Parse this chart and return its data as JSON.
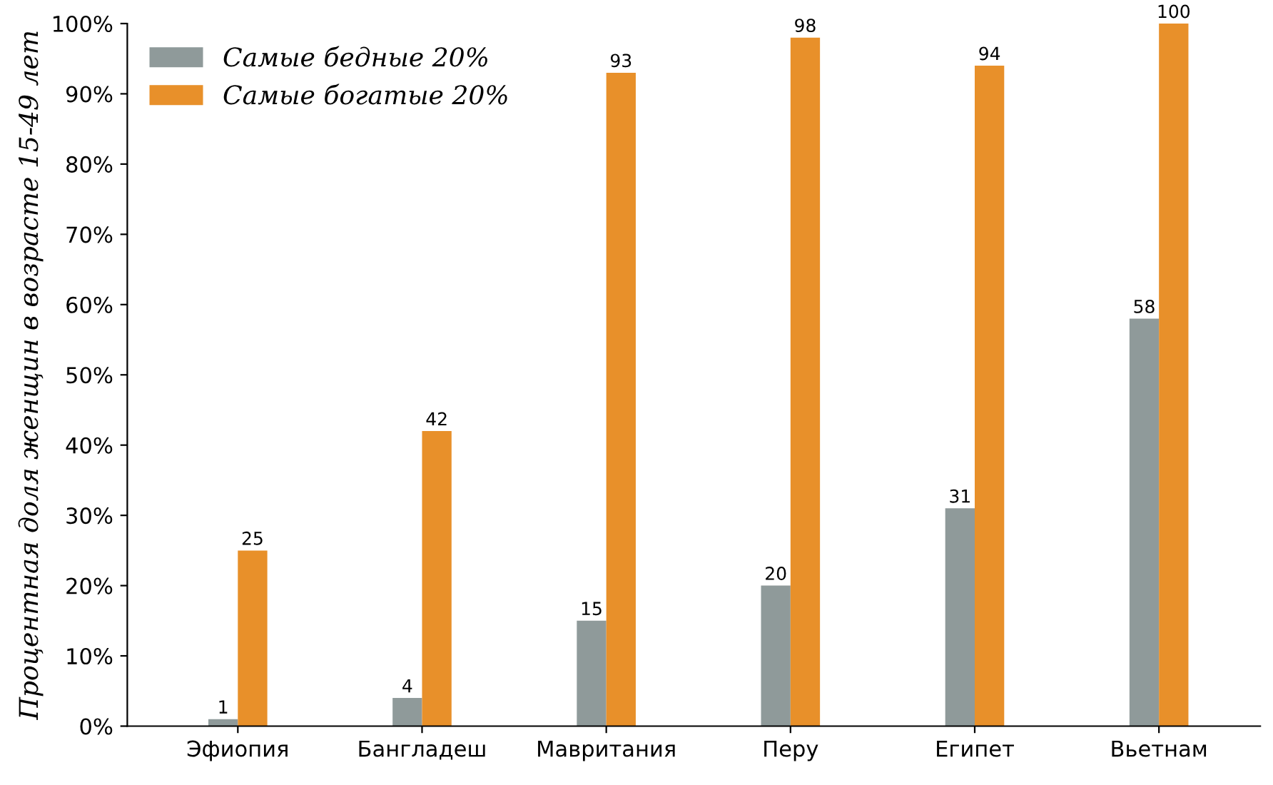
{
  "chart_data": {
    "type": "bar",
    "ylabel": "Процентная доля женщин в возрасте 15-49 лет",
    "categories": [
      "Эфиопия",
      "Бангладеш",
      "Мавритания",
      "Перу",
      "Египет",
      "Вьетнам"
    ],
    "series": [
      {
        "name": "Самые бедные 20%",
        "color": "#8f9a9a",
        "values": [
          1,
          4,
          15,
          20,
          31,
          58
        ]
      },
      {
        "name": "Самые богатые 20%",
        "color": "#e8902a",
        "values": [
          25,
          42,
          93,
          98,
          94,
          100
        ]
      }
    ],
    "ylim": [
      0,
      100
    ],
    "yticks": [
      {
        "value": 0,
        "label": "0%"
      },
      {
        "value": 10,
        "label": "10%"
      },
      {
        "value": 20,
        "label": "20%"
      },
      {
        "value": 30,
        "label": "30%"
      },
      {
        "value": 40,
        "label": "40%"
      },
      {
        "value": 50,
        "label": "50%"
      },
      {
        "value": 60,
        "label": "60%"
      },
      {
        "value": 70,
        "label": "70%"
      },
      {
        "value": 80,
        "label": "80%"
      },
      {
        "value": 90,
        "label": "90%"
      },
      {
        "value": 100,
        "label": "100%"
      }
    ],
    "data_labels": true,
    "grid": false,
    "legend": "top left"
  }
}
